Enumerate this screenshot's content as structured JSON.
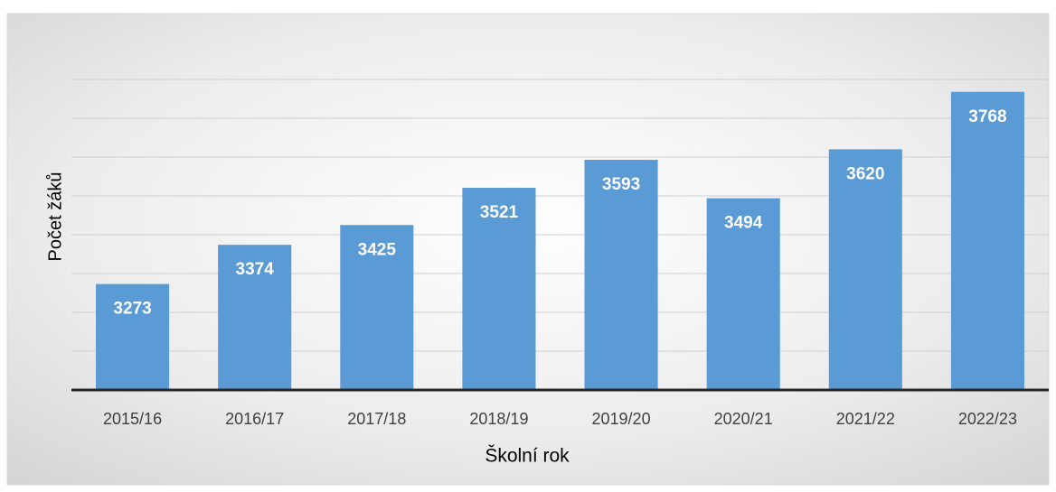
{
  "chart_data": {
    "type": "bar",
    "x_label": "Školní rok",
    "y_label": "Počet žáků",
    "categories": [
      "2015/16",
      "2016/17",
      "2017/18",
      "2018/19",
      "2019/20",
      "2020/21",
      "2021/22",
      "2022/23"
    ],
    "values": [
      3273,
      3374,
      3425,
      3521,
      3593,
      3494,
      3620,
      3768
    ],
    "color": "#5b9bd5",
    "ylim": [
      3000,
      3800
    ],
    "yticks": [
      3000,
      3100,
      3200,
      3300,
      3400,
      3500,
      3600,
      3700,
      3800
    ],
    "grid": true
  }
}
